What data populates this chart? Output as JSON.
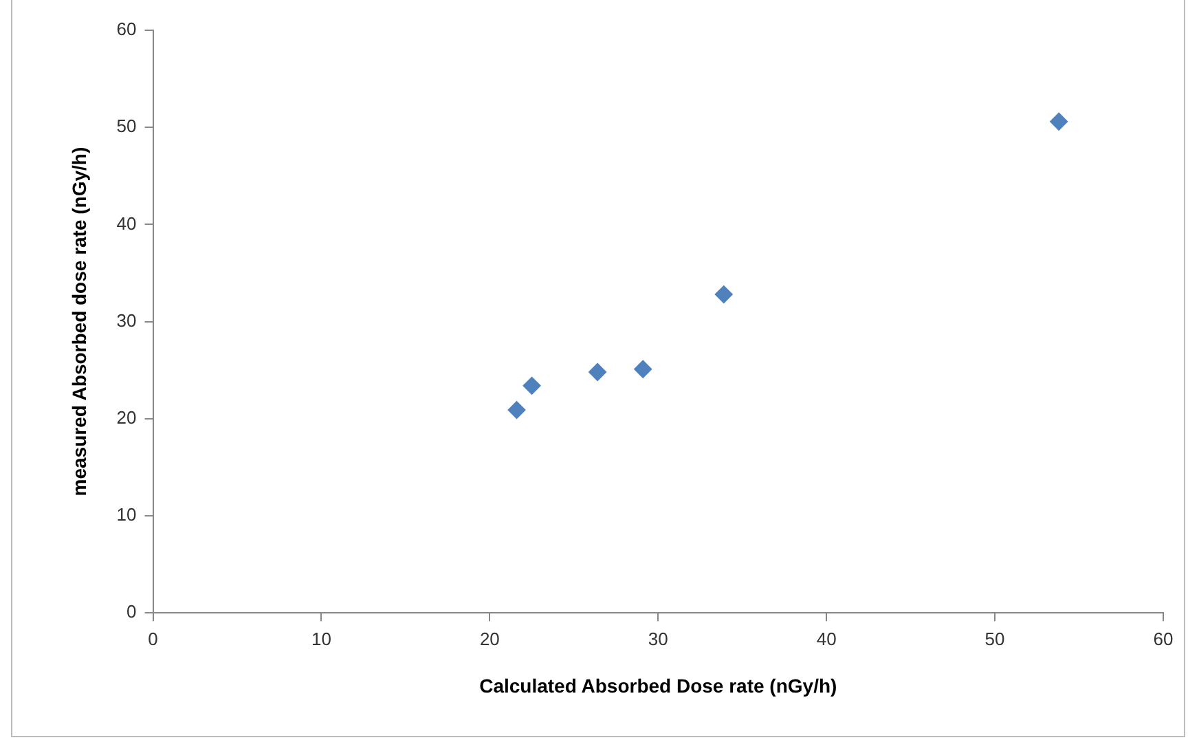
{
  "chart_data": {
    "type": "scatter",
    "xlabel": "Calculated Absorbed Dose rate (nGy/h)",
    "ylabel": "measured Absorbed dose rate (nGy/h)",
    "series": [
      {
        "color": "#4f81bd",
        "x": [
          21.6,
          22.5,
          26.4,
          29.1,
          33.9,
          53.8
        ],
        "values": [
          20.9,
          23.4,
          24.8,
          25.1,
          32.8,
          50.6
        ]
      }
    ],
    "xlim": [
      0,
      60
    ],
    "xticks": [
      0,
      10,
      20,
      30,
      40,
      50,
      60
    ],
    "ylim": [
      0,
      60
    ],
    "yticks": [
      0,
      10,
      20,
      30,
      40,
      50,
      60
    ],
    "grid": false,
    "legend": false,
    "marker": "diamond"
  }
}
